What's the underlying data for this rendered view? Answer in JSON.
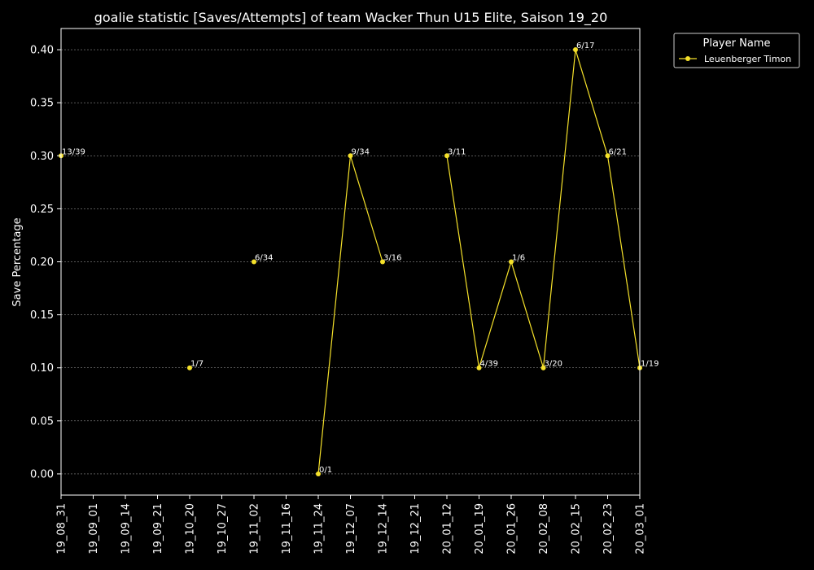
{
  "chart_data": {
    "type": "line",
    "title": "goalie statistic [Saves/Attempts] of team Wacker Thun U15 Elite, Saison 19_20",
    "xlabel": "",
    "ylabel": "Save Percentage",
    "categories": [
      "19_08_31",
      "19_09_01",
      "19_09_14",
      "19_09_21",
      "19_10_20",
      "19_10_27",
      "19_11_02",
      "19_11_16",
      "19_11_24",
      "19_12_07",
      "19_12_14",
      "19_12_21",
      "20_01_12",
      "20_01_19",
      "20_01_26",
      "20_02_08",
      "20_02_15",
      "20_02_23",
      "20_03_01"
    ],
    "ylim": [
      -0.02,
      0.42
    ],
    "yticks": [
      "0.00",
      "0.05",
      "0.10",
      "0.15",
      "0.20",
      "0.25",
      "0.30",
      "0.35",
      "0.40"
    ],
    "grid": true,
    "legend": {
      "title": "Player Name",
      "position": "top-right"
    },
    "series": [
      {
        "name": "Leuenberger Timon",
        "color": "#f5e12a",
        "values": [
          0.3,
          null,
          null,
          null,
          0.1,
          null,
          0.2,
          null,
          0.0,
          0.3,
          0.2,
          null,
          0.3,
          0.1,
          0.2,
          0.1,
          0.4,
          0.3,
          0.1
        ],
        "labels": [
          "13/39",
          "",
          "",
          "",
          "1/7",
          "",
          "6/34",
          "",
          "0/1",
          "9/34",
          "3/16",
          "",
          "3/11",
          "4/39",
          "1/6",
          "3/20",
          "6/17",
          "6/21",
          "1/19"
        ]
      }
    ]
  }
}
